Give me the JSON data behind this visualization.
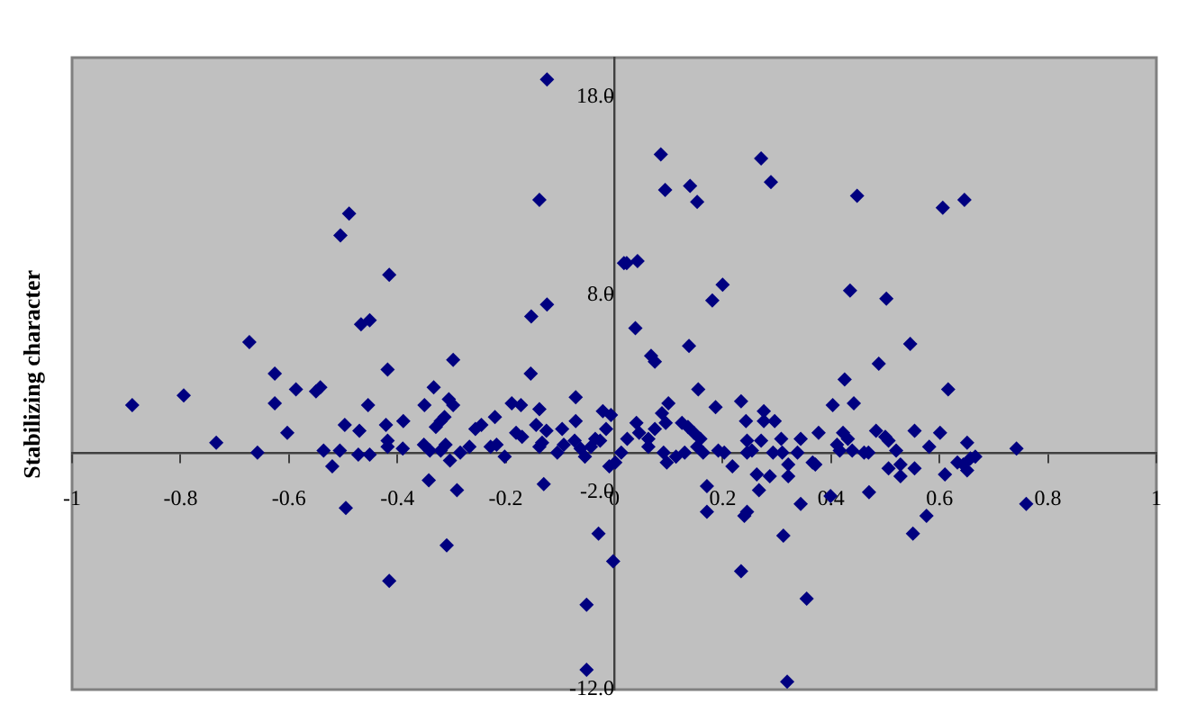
{
  "chart_data": {
    "type": "scatter",
    "ylabel": "Stabilizing character",
    "xlim": [
      -1,
      1
    ],
    "xticks": [
      -1,
      -0.8,
      -0.6,
      -0.4,
      -0.2,
      0,
      0.2,
      0.4,
      0.6,
      0.8,
      1
    ],
    "ylim": [
      -12,
      20
    ],
    "yticks": [
      {
        "value": -12,
        "label": "-12.0"
      },
      {
        "value": -2,
        "label": "-2.0"
      },
      {
        "value": 8,
        "label": "8.0"
      },
      {
        "value": 18,
        "label": "18.0"
      }
    ],
    "grid": false,
    "legend": false,
    "marker": "diamond",
    "series": [
      {
        "color": "#000080",
        "x": [
          -0.124,
          -0.138,
          -0.489,
          -0.505,
          -0.415,
          0.018,
          -0.153,
          -0.124,
          -0.467,
          -0.451,
          -0.673,
          -0.626,
          -0.418,
          -0.297,
          -0.154,
          -0.587,
          -0.542,
          -0.55,
          -0.333,
          -0.794,
          0.023,
          0.043,
          0.086,
          0.094,
          0.14,
          0.153,
          0.271,
          0.289,
          0.448,
          0.606,
          0.646,
          0.039,
          0.181,
          0.2,
          0.435,
          0.502,
          0.068,
          0.075,
          0.138,
          0.546,
          0.488,
          0.425,
          0.155,
          0.616,
          -0.889,
          -0.734,
          -0.626,
          -0.603,
          -0.658,
          -0.454,
          -0.497,
          -0.47,
          -0.536,
          -0.506,
          -0.52,
          -0.472,
          -0.451,
          -0.421,
          -0.418,
          -0.418,
          -0.389,
          -0.39,
          -0.35,
          -0.305,
          -0.297,
          -0.329,
          -0.32,
          -0.313,
          -0.351,
          -0.34,
          -0.32,
          -0.311,
          -0.303,
          -0.284,
          -0.267,
          -0.256,
          -0.245,
          -0.22,
          -0.228,
          -0.217,
          -0.202,
          -0.189,
          -0.172,
          -0.181,
          -0.17,
          -0.138,
          -0.144,
          -0.138,
          -0.133,
          -0.125,
          -0.105,
          -0.096,
          -0.093,
          -0.071,
          -0.071,
          -0.073,
          -0.062,
          -0.054,
          -0.043,
          -0.035,
          -0.026,
          -0.021,
          -0.006,
          -0.015,
          -0.009,
          -0.29,
          -0.342,
          -0.13,
          -0.495,
          -0.309,
          -0.029,
          -0.002,
          -0.415,
          -0.051,
          -0.051,
          0.187,
          0.234,
          0.243,
          0.276,
          0.276,
          0.296,
          0.1,
          0.088,
          0.095,
          0.024,
          0.041,
          0.046,
          0.063,
          0.075,
          0.063,
          0.013,
          0.002,
          0.097,
          0.091,
          0.125,
          0.136,
          0.147,
          0.159,
          0.153,
          0.13,
          0.164,
          0.114,
          0.192,
          0.203,
          0.218,
          0.245,
          0.254,
          0.271,
          0.245,
          0.263,
          0.287,
          0.267,
          0.308,
          0.321,
          0.321,
          0.344,
          0.338,
          0.366,
          0.371,
          0.377,
          0.31,
          0.293,
          0.403,
          0.442,
          0.411,
          0.422,
          0.431,
          0.439,
          0.416,
          0.399,
          0.47,
          0.461,
          0.469,
          0.483,
          0.5,
          0.506,
          0.52,
          0.506,
          0.528,
          0.528,
          0.554,
          0.554,
          0.581,
          0.601,
          0.61,
          0.633,
          0.644,
          0.651,
          0.657,
          0.666,
          0.651,
          0.742,
          0.76,
          0.344,
          0.312,
          0.171,
          0.171,
          0.24,
          0.245,
          0.234,
          0.355,
          0.319,
          0.551,
          0.576
        ],
        "values": [
          18.9,
          12.8,
          12.1,
          11.0,
          9.0,
          9.6,
          6.9,
          7.5,
          6.5,
          6.7,
          5.6,
          4.0,
          4.2,
          4.7,
          4.0,
          3.2,
          3.3,
          3.1,
          3.3,
          2.9,
          9.6,
          9.7,
          15.1,
          13.3,
          13.5,
          12.7,
          14.9,
          13.7,
          13.0,
          12.4,
          12.8,
          6.3,
          7.7,
          8.5,
          8.2,
          7.8,
          4.9,
          4.6,
          5.4,
          5.5,
          4.5,
          3.7,
          3.2,
          3.2,
          2.4,
          0.5,
          2.5,
          1.0,
          0,
          2.4,
          1.4,
          1.1,
          0.1,
          0.1,
          -0.7,
          -0.1,
          -0.1,
          1.4,
          0.6,
          0.3,
          1.6,
          0.2,
          2.4,
          2.7,
          2.4,
          1.3,
          1.6,
          1.8,
          0.4,
          0.1,
          0.1,
          0.4,
          -0.4,
          0,
          0.3,
          1.2,
          1.4,
          1.8,
          0.3,
          0.4,
          -0.2,
          2.5,
          2.4,
          1.0,
          0.8,
          2.2,
          1.4,
          0.3,
          0.5,
          1.1,
          0,
          1.2,
          0.4,
          2.8,
          1.6,
          0.6,
          0.2,
          -0.2,
          0.3,
          0.7,
          0.6,
          2.1,
          1.9,
          1.2,
          -0.7,
          -1.9,
          -1.4,
          -1.6,
          -2.8,
          -4.7,
          -4.1,
          -5.5,
          -6.5,
          -7.7,
          -11.0,
          2.3,
          2.6,
          1.6,
          2.1,
          1.6,
          1.6,
          2.5,
          2.0,
          1.5,
          0.7,
          1.5,
          1.0,
          0.7,
          1.2,
          0.3,
          0,
          -0.5,
          -0.5,
          0,
          1.5,
          1.3,
          1.0,
          0.7,
          0.3,
          0,
          0,
          -0.2,
          0.1,
          0,
          -0.7,
          0.6,
          0.1,
          0.6,
          0,
          -1.1,
          -1.2,
          -1.9,
          0.7,
          -1.2,
          -0.6,
          0.7,
          0,
          -0.5,
          -0.6,
          1.0,
          0,
          0,
          2.4,
          2.5,
          0.4,
          1.0,
          0.7,
          0.1,
          0.1,
          -2.2,
          -2.0,
          0,
          0,
          1.1,
          0.8,
          0.6,
          0.1,
          -0.8,
          -0.6,
          -1.2,
          1.1,
          -0.8,
          0.3,
          1.0,
          -1.1,
          -0.5,
          -0.6,
          -0.9,
          -0.3,
          -0.2,
          0.5,
          0.2,
          -2.6,
          -2.6,
          -4.2,
          -3.0,
          -1.7,
          -3.2,
          -3.0,
          -6.0,
          -7.4,
          -11.6,
          -4.1,
          -3.2
        ]
      }
    ]
  }
}
